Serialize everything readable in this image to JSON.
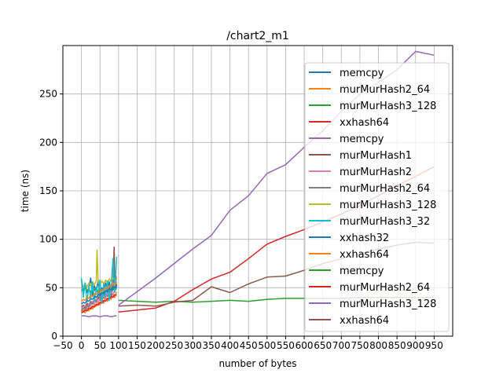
{
  "chart_data": {
    "type": "line",
    "title": "/chart2_m1",
    "xlabel": "number of bytes",
    "ylabel": "time (ns)",
    "xlim": [
      -50,
      1000
    ],
    "ylim": [
      0,
      300
    ],
    "xticks": [
      -50,
      0,
      50,
      100,
      150,
      200,
      250,
      300,
      350,
      400,
      450,
      500,
      550,
      600,
      650,
      700,
      750,
      800,
      850,
      900,
      950
    ],
    "xtick_labels": [
      "−50",
      "0",
      "50",
      "100",
      "150",
      "200",
      "250",
      "300",
      "350",
      "400",
      "450",
      "500",
      "550",
      "600",
      "650",
      "700",
      "750",
      "800",
      "850",
      "900",
      "950"
    ],
    "yticks": [
      0,
      50,
      100,
      150,
      200,
      250
    ],
    "ytick_labels": [
      "0",
      "50",
      "100",
      "150",
      "200",
      "250"
    ],
    "grid": true,
    "legend_position": "right",
    "series": [
      {
        "name": "memcpy",
        "color": "#1f77b4",
        "x": [
          0,
          5,
          10,
          15,
          20,
          25,
          30,
          35,
          40,
          45,
          50,
          55,
          60,
          65,
          70,
          75,
          80,
          85,
          90,
          95
        ],
        "y": [
          58,
          48,
          55,
          45,
          50,
          60,
          42,
          52,
          46,
          58,
          40,
          50,
          44,
          55,
          48,
          56,
          42,
          50,
          46,
          52
        ]
      },
      {
        "name": "murMurHash2_64",
        "color": "#ff7f0e",
        "x": [
          0,
          5,
          10,
          15,
          20,
          25,
          30,
          35,
          40,
          45,
          50,
          55,
          60,
          65,
          70,
          75,
          80,
          85,
          90,
          95
        ],
        "y": [
          25,
          27,
          24,
          29,
          26,
          30,
          28,
          33,
          31,
          35,
          32,
          38,
          34,
          40,
          36,
          42,
          38,
          44,
          40,
          46
        ]
      },
      {
        "name": "murMurHash3_128",
        "color": "#2ca02c",
        "x": [
          0,
          5,
          10,
          15,
          20,
          25,
          30,
          35,
          40,
          45,
          50,
          55,
          60,
          65,
          70,
          75,
          80,
          85,
          90,
          95
        ],
        "y": [
          48,
          46,
          50,
          47,
          49,
          45,
          51,
          47,
          50,
          46,
          49,
          47,
          48,
          50,
          46,
          49,
          47,
          50,
          48,
          49
        ]
      },
      {
        "name": "xxhash64",
        "color": "#d62728",
        "x": [
          0,
          5,
          10,
          15,
          20,
          25,
          30,
          35,
          40,
          45,
          50,
          55,
          60,
          65,
          70,
          75,
          80,
          85,
          90,
          95
        ],
        "y": [
          24,
          25,
          27,
          26,
          29,
          28,
          31,
          30,
          33,
          32,
          35,
          34,
          37,
          36,
          39,
          38,
          41,
          40,
          43,
          42
        ]
      },
      {
        "name": "memcpy",
        "color": "#9467bd",
        "x": [
          0,
          10,
          20,
          30,
          40,
          50,
          60,
          70,
          80,
          90,
          95
        ],
        "y": [
          21,
          21,
          20,
          21,
          21,
          20,
          21,
          21,
          20,
          21,
          21
        ]
      },
      {
        "name": "murMurHash1",
        "color": "#8c564b",
        "x": [
          0,
          5,
          10,
          15,
          20,
          25,
          30,
          35,
          40,
          45,
          50,
          55,
          60,
          65,
          70,
          75,
          80,
          85,
          88,
          90,
          95
        ],
        "y": [
          30,
          32,
          29,
          34,
          31,
          36,
          33,
          38,
          35,
          40,
          37,
          42,
          39,
          44,
          41,
          46,
          50,
          55,
          92,
          60,
          52
        ]
      },
      {
        "name": "murMurHash2",
        "color": "#e377c2",
        "x": [
          0,
          5,
          10,
          15,
          20,
          25,
          30,
          35,
          40,
          45,
          50,
          55,
          60,
          65,
          70,
          75,
          80,
          85,
          90,
          95
        ],
        "y": [
          28,
          30,
          32,
          29,
          34,
          31,
          36,
          33,
          38,
          35,
          40,
          37,
          42,
          39,
          44,
          41,
          46,
          43,
          48,
          62
        ]
      },
      {
        "name": "murMurHash2_64",
        "color": "#7f7f7f",
        "x": [
          0,
          5,
          10,
          15,
          20,
          25,
          30,
          35,
          40,
          45,
          50,
          55,
          60,
          65,
          70,
          75,
          80,
          85,
          90,
          95
        ],
        "y": [
          26,
          29,
          27,
          32,
          30,
          35,
          33,
          38,
          36,
          41,
          39,
          44,
          42,
          47,
          45,
          50,
          48,
          53,
          51,
          56
        ]
      },
      {
        "name": "murMurHash3_128",
        "color": "#bcbd22",
        "x": [
          0,
          5,
          10,
          15,
          20,
          25,
          30,
          35,
          40,
          42,
          45,
          50,
          55,
          60,
          65,
          70,
          75,
          80,
          85,
          90,
          95
        ],
        "y": [
          52,
          50,
          54,
          51,
          55,
          52,
          56,
          53,
          57,
          89,
          55,
          53,
          57,
          54,
          58,
          55,
          59,
          56,
          60,
          57,
          61
        ]
      },
      {
        "name": "murMurHash3_32",
        "color": "#17becf",
        "x": [
          0,
          5,
          10,
          15,
          20,
          25,
          30,
          35,
          40,
          45,
          50,
          55,
          60,
          65,
          70,
          75,
          80,
          85,
          90,
          95
        ],
        "y": [
          60,
          40,
          55,
          35,
          52,
          38,
          56,
          36,
          50,
          42,
          58,
          34,
          54,
          40,
          57,
          37,
          53,
          80,
          45,
          82
        ]
      },
      {
        "name": "xxhash32",
        "color": "#1f77b4",
        "x": [
          0,
          5,
          10,
          15,
          20,
          25,
          30,
          35,
          40,
          45,
          50,
          55,
          60,
          65,
          70,
          75,
          80,
          85,
          90,
          95
        ],
        "y": [
          33,
          35,
          34,
          37,
          36,
          39,
          38,
          41,
          40,
          43,
          42,
          45,
          44,
          47,
          46,
          49,
          48,
          51,
          50,
          53
        ]
      },
      {
        "name": "xxhash64",
        "color": "#ff7f0e",
        "x": [
          0,
          5,
          10,
          15,
          20,
          25,
          30,
          35,
          40,
          45,
          50,
          55,
          60,
          65,
          70,
          75,
          80,
          85,
          90,
          95
        ],
        "y": [
          36,
          38,
          37,
          40,
          39,
          42,
          41,
          44,
          43,
          46,
          45,
          48,
          47,
          50,
          49,
          52,
          51,
          54,
          53,
          56
        ]
      },
      {
        "name": "memcpy",
        "color": "#2ca02c",
        "x": [
          100,
          150,
          200,
          250,
          300,
          350,
          400,
          450,
          500,
          550,
          600,
          650,
          700,
          750,
          800,
          850,
          900,
          950
        ],
        "y": [
          37,
          36,
          35,
          36,
          35,
          36,
          37,
          36,
          38,
          39,
          39,
          39,
          39,
          40,
          40,
          40,
          40,
          40
        ]
      },
      {
        "name": "murMurHash2_64",
        "color": "#d62728",
        "x": [
          100,
          150,
          200,
          250,
          300,
          350,
          400,
          450,
          500,
          550,
          600,
          650,
          700,
          750,
          800,
          850,
          900,
          950
        ],
        "y": [
          25,
          27,
          29,
          36,
          48,
          59,
          66,
          80,
          95,
          103,
          110,
          118,
          126,
          135,
          145,
          155,
          165,
          175
        ]
      },
      {
        "name": "murMurHash3_128",
        "color": "#9467bd",
        "x": [
          100,
          150,
          200,
          250,
          300,
          350,
          400,
          450,
          500,
          550,
          600,
          650,
          700,
          750,
          800,
          850,
          900,
          925,
          950
        ],
        "y": [
          32,
          46,
          60,
          75,
          90,
          104,
          130,
          145,
          168,
          177,
          195,
          212,
          232,
          250,
          262,
          275,
          294,
          292,
          290
        ]
      },
      {
        "name": "xxhash64",
        "color": "#8c564b",
        "x": [
          100,
          150,
          200,
          250,
          300,
          350,
          400,
          450,
          500,
          550,
          600,
          650,
          700,
          750,
          800,
          850,
          900,
          950
        ],
        "y": [
          31,
          32,
          31,
          35,
          37,
          51,
          45,
          54,
          61,
          62,
          68,
          75,
          80,
          85,
          90,
          94,
          97,
          96
        ]
      }
    ]
  }
}
